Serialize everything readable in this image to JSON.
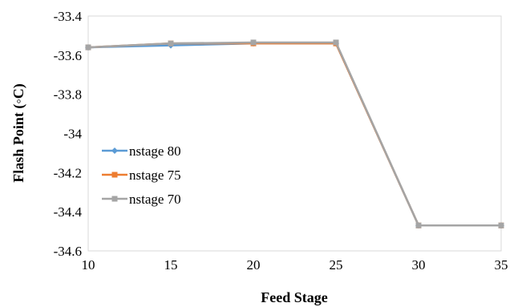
{
  "chart_data": {
    "type": "line",
    "title": "",
    "xlabel": "Feed Stage",
    "ylabel": "Flash Point (◦C)",
    "xlim": [
      10,
      35
    ],
    "ylim": [
      -34.6,
      -33.4
    ],
    "x_ticks": [
      "10",
      "15",
      "20",
      "25",
      "30",
      "35"
    ],
    "y_ticks": [
      "-33.4",
      "-33.6",
      "-33.8",
      "-34",
      "-34.2",
      "-34.4",
      "-34.6"
    ],
    "grid": false,
    "legend_position": "left",
    "series": [
      {
        "name": "nstage 80",
        "color": "#5b9bd5",
        "marker": "diamond",
        "x": [
          10,
          15,
          20,
          25,
          30,
          35
        ],
        "values": [
          -33.56,
          -33.55,
          -33.54,
          -33.54,
          -34.47,
          -34.47
        ]
      },
      {
        "name": "nstage 75",
        "color": "#ed7d31",
        "marker": "square",
        "x": [
          10,
          15,
          20,
          25,
          30,
          35
        ],
        "values": [
          -33.56,
          -33.54,
          -33.54,
          -33.54,
          -34.47,
          -34.47
        ]
      },
      {
        "name": "nstage 70",
        "color": "#a5a5a5",
        "marker": "square",
        "x": [
          10,
          15,
          20,
          25,
          30,
          35
        ],
        "values": [
          -33.56,
          -33.54,
          -33.535,
          -33.535,
          -34.47,
          -34.47
        ]
      }
    ]
  }
}
